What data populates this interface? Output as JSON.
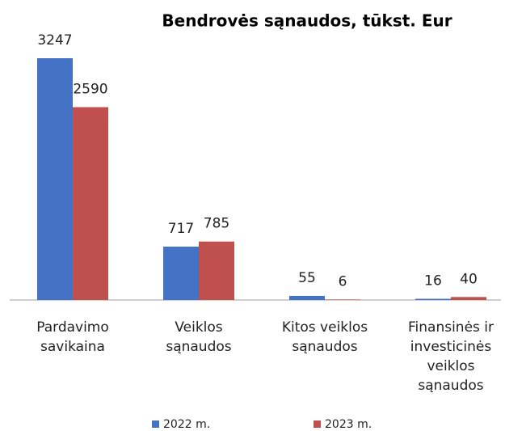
{
  "chart_data": {
    "type": "bar",
    "title": "Bendrovės sąnaudos, tūkst. Eur",
    "categories": [
      [
        "Pardavimo",
        "savikaina"
      ],
      [
        "Veiklos",
        "sąnaudos"
      ],
      [
        "Kitos veiklos",
        "sąnaudos"
      ],
      [
        "Finansinės ir",
        "investicinės",
        "veiklos",
        "sąnaudos"
      ]
    ],
    "series": [
      {
        "name": "2022 m.",
        "color": "#4472c4",
        "values": [
          3247,
          717,
          55,
          16
        ]
      },
      {
        "name": "2023 m.",
        "color": "#c0504d",
        "values": [
          2590,
          785,
          6,
          40
        ]
      }
    ]
  }
}
